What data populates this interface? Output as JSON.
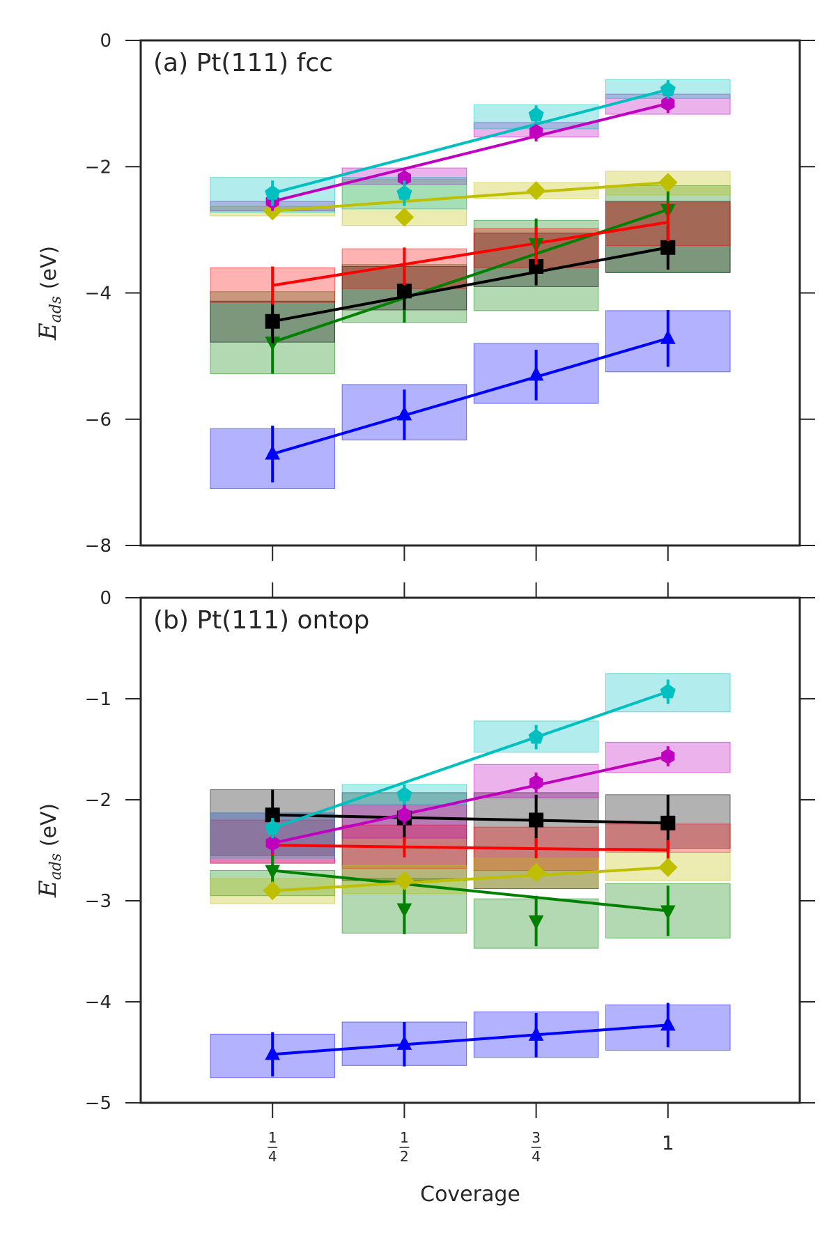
{
  "chart_data": [
    {
      "type": "line",
      "title": "(a) Pt(111) fcc",
      "xlabel": "Coverage",
      "ylabel": "E_ads (eV)",
      "ylabel_main": "E",
      "ylabel_sub": "ads",
      "ylabel_unit": "(eV)",
      "ylim": [
        -8,
        0
      ],
      "yticks": [
        0,
        -2,
        -4,
        -6,
        -8
      ],
      "ytick_labels": [
        "0",
        "−2",
        "−4",
        "−6",
        "−8"
      ],
      "x": [
        0.25,
        0.5,
        0.75,
        1.0
      ],
      "series": [
        {
          "color": "#0000ff",
          "marker": "triangle-up",
          "values": [
            -6.55,
            -5.93,
            -5.3,
            -4.72
          ],
          "err": [
            0.45,
            0.4,
            0.4,
            0.45
          ],
          "band": [
            [
              -7.1,
              -6.15
            ],
            [
              -6.33,
              -5.45
            ],
            [
              -5.75,
              -4.8
            ],
            [
              -5.25,
              -4.28
            ]
          ]
        },
        {
          "color": "#008000",
          "marker": "triangle-down",
          "values": [
            -4.78,
            -4.02,
            -3.22,
            -2.68
          ],
          "err": [
            0.5,
            0.45,
            0.4,
            0.4
          ],
          "band": [
            [
              -5.28,
              -3.98
            ],
            [
              -4.47,
              -3.55
            ],
            [
              -4.28,
              -2.85
            ],
            [
              -3.67,
              -2.3
            ]
          ]
        },
        {
          "color": "#000000",
          "marker": "square",
          "values": [
            -4.45,
            -3.97,
            -3.58,
            -3.28
          ],
          "err": [
            0.35,
            0.3,
            0.3,
            0.35
          ],
          "band": [
            [
              -4.78,
              -4.13
            ],
            [
              -4.27,
              -3.58
            ],
            [
              -3.9,
              -3.05
            ],
            [
              -3.68,
              -2.55
            ]
          ]
        },
        {
          "color": "#ff0000",
          "marker": "circle",
          "values": [
            -3.88,
            -3.58,
            -3.25,
            -2.88
          ],
          "err": [
            0.3,
            0.3,
            0.3,
            0.3
          ],
          "band": [
            [
              -4.15,
              -3.6
            ],
            [
              -3.93,
              -3.3
            ],
            [
              -3.6,
              -2.98
            ],
            [
              -3.25,
              -2.57
            ]
          ]
        },
        {
          "color": "#bfbf00",
          "marker": "diamond",
          "values": [
            -2.7,
            -2.8,
            -2.38,
            -2.25
          ],
          "err": [
            0.1,
            0.1,
            0.1,
            0.1
          ],
          "band": [
            [
              -2.78,
              -2.63
            ],
            [
              -2.93,
              -2.2
            ],
            [
              -2.5,
              -2.25
            ],
            [
              -2.45,
              -2.07
            ]
          ]
        },
        {
          "color": "#bf00bf",
          "marker": "hexagon",
          "values": [
            -2.55,
            -2.18,
            -1.45,
            -1.0
          ],
          "err": [
            0.15,
            0.15,
            0.15,
            0.15
          ],
          "band": [
            [
              -2.7,
              -2.55
            ],
            [
              -2.28,
              -2.02
            ],
            [
              -1.53,
              -1.3
            ],
            [
              -1.17,
              -0.85
            ]
          ]
        },
        {
          "color": "#00bfbf",
          "marker": "pentagon",
          "values": [
            -2.42,
            -2.42,
            -1.18,
            -0.78
          ],
          "err": [
            0.2,
            0.2,
            0.15,
            0.15
          ],
          "band": [
            [
              -2.72,
              -2.17
            ],
            [
              -2.67,
              -2.17
            ],
            [
              -1.4,
              -1.02
            ],
            [
              -0.92,
              -0.62
            ]
          ]
        }
      ]
    },
    {
      "type": "line",
      "title": "(b) Pt(111) ontop",
      "xlabel": "Coverage",
      "ylabel": "E_ads (eV)",
      "ylabel_main": "E",
      "ylabel_sub": "ads",
      "ylabel_unit": "(eV)",
      "ylim": [
        -5,
        0
      ],
      "yticks": [
        0,
        -1,
        -2,
        -3,
        -4,
        -5
      ],
      "ytick_labels": [
        "0",
        "−1",
        "−2",
        "−3",
        "−4",
        "−5"
      ],
      "x": [
        0.25,
        0.5,
        0.75,
        1.0
      ],
      "xtick_labels": [
        {
          "num": "1",
          "den": "4"
        },
        {
          "num": "1",
          "den": "2"
        },
        {
          "num": "3",
          "den": "4"
        },
        {
          "whole": "1"
        }
      ],
      "series": [
        {
          "color": "#0000ff",
          "marker": "triangle-up",
          "values": [
            -4.52,
            -4.42,
            -4.33,
            -4.23
          ],
          "err": [
            0.22,
            0.22,
            0.22,
            0.22
          ],
          "band": [
            [
              -4.75,
              -4.32
            ],
            [
              -4.63,
              -4.2
            ],
            [
              -4.55,
              -4.1
            ],
            [
              -4.48,
              -4.03
            ]
          ]
        },
        {
          "color": "#008000",
          "marker": "triangle-down",
          "values": [
            -2.7,
            -3.08,
            -3.2,
            -3.1
          ],
          "err": [
            0.25,
            0.25,
            0.25,
            0.25
          ],
          "band": [
            [
              -2.95,
              -2.7
            ],
            [
              -3.32,
              -2.78
            ],
            [
              -3.47,
              -2.98
            ],
            [
              -3.37,
              -2.83
            ]
          ]
        },
        {
          "color": "#000000",
          "marker": "square",
          "values": [
            -2.15,
            -2.18,
            -2.2,
            -2.23
          ],
          "err": [
            0.25,
            0.25,
            0.25,
            0.28
          ],
          "band": [
            [
              -2.55,
              -1.9
            ],
            [
              -2.8,
              -1.93
            ],
            [
              -2.88,
              -1.93
            ],
            [
              -2.48,
              -1.95
            ]
          ]
        },
        {
          "color": "#ff0000",
          "marker": "circle",
          "values": [
            -2.45,
            -2.47,
            -2.48,
            -2.5
          ],
          "err": [
            0.1,
            0.1,
            0.1,
            0.1
          ],
          "band": [
            [
              -2.63,
              -2.2
            ],
            [
              -2.68,
              -2.25
            ],
            [
              -2.7,
              -2.27
            ],
            [
              -2.52,
              -2.24
            ]
          ]
        },
        {
          "color": "#bfbf00",
          "marker": "diamond",
          "values": [
            -2.9,
            -2.8,
            -2.72,
            -2.67
          ],
          "err": [
            0.05,
            0.05,
            0.05,
            0.05
          ],
          "band": [
            [
              -3.03,
              -2.78
            ],
            [
              -2.93,
              -2.65
            ],
            [
              -2.87,
              -2.58
            ],
            [
              -2.8,
              -2.52
            ]
          ]
        },
        {
          "color": "#bf00bf",
          "marker": "hexagon",
          "values": [
            -2.43,
            -2.15,
            -1.83,
            -1.57
          ],
          "err": [
            0.1,
            0.1,
            0.1,
            0.1
          ],
          "band": [
            [
              -2.62,
              -2.13
            ],
            [
              -2.38,
              -2.05
            ],
            [
              -1.98,
              -1.65
            ],
            [
              -1.73,
              -1.43
            ]
          ]
        },
        {
          "color": "#00bfbf",
          "marker": "pentagon",
          "values": [
            -2.28,
            -1.95,
            -1.38,
            -0.93
          ],
          "err": [
            0.1,
            0.1,
            0.12,
            0.12
          ],
          "band": [
            [
              -2.58,
              -2.13
            ],
            [
              -2.05,
              -1.85
            ],
            [
              -1.53,
              -1.22
            ],
            [
              -1.13,
              -0.75
            ]
          ]
        }
      ]
    }
  ]
}
